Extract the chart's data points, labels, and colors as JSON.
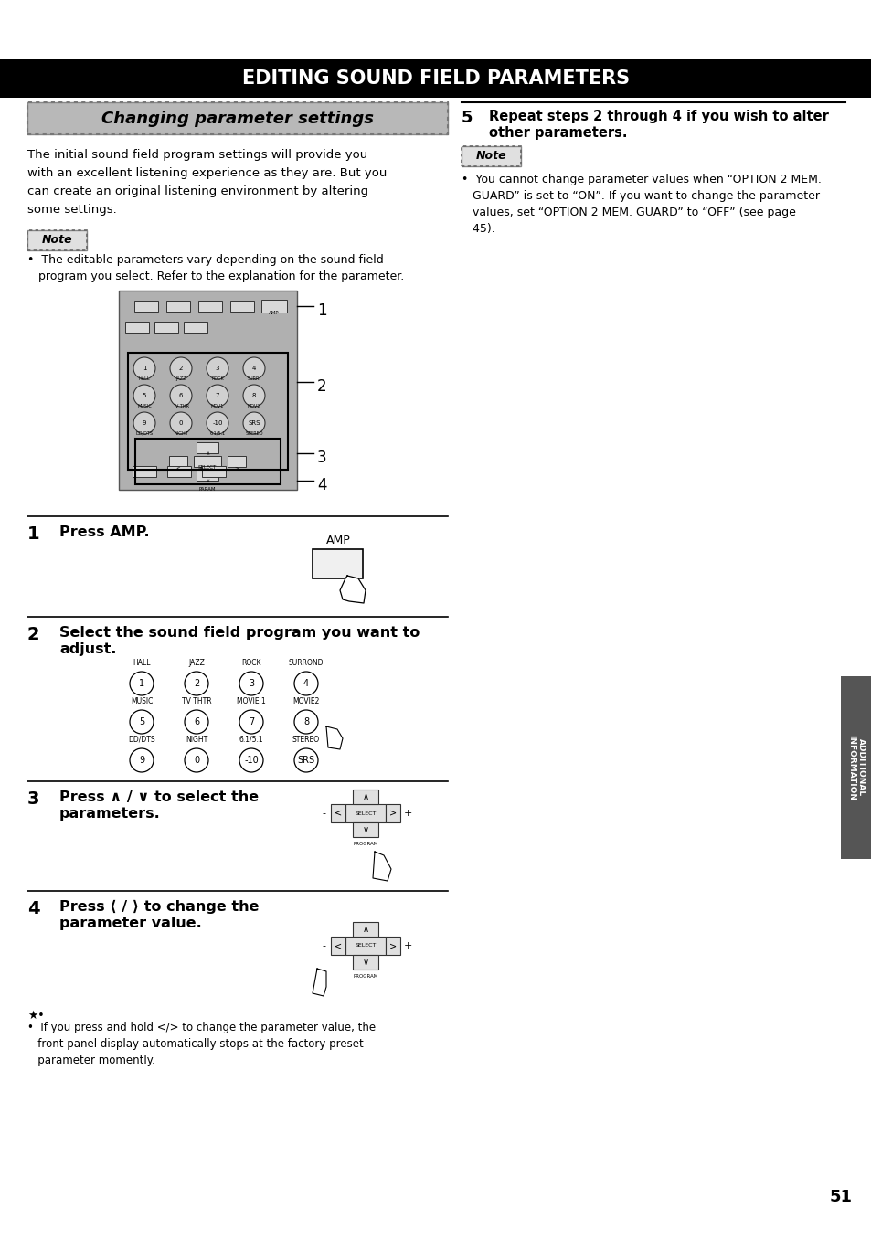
{
  "bg_color": "#ffffff",
  "title_text": "EDITING SOUND FIELD PARAMETERS",
  "title_bg": "#000000",
  "title_color": "#ffffff",
  "section_header_text": "Changing parameter settings",
  "left_intro_lines": [
    "The initial sound field program settings will provide you",
    "with an excellent listening experience as they are. But you",
    "can create an original listening environment by altering",
    "some settings."
  ],
  "left_note_lines": [
    "•  The editable parameters vary depending on the sound field",
    "   program you select. Refer to the explanation for the parameter."
  ],
  "step5_text_line1": "Repeat steps 2 through 4 if you wish to alter",
  "step5_text_line2": "other parameters.",
  "right_note_lines": [
    "•  You cannot change parameter values when “OPTION 2 MEM.",
    "   GUARD” is set to “ON”. If you want to change the parameter",
    "   values, set “OPTION 2 MEM. GUARD” to “OFF” (see page",
    "   45)."
  ],
  "step1_text": "Press AMP.",
  "step2_text_line1": "Select the sound field program you want to",
  "step2_text_line2": "adjust.",
  "step3_text_line1": "Press ∧ / ∨ to select the",
  "step3_text_line2": "parameters.",
  "step4_text_line1": "Press ⟨ / ⟩ to change the",
  "step4_text_line2": "parameter value.",
  "tip_lines": [
    "•  If you press and hold </> to change the parameter value, the",
    "   front panel display automatically stops at the factory preset",
    "   parameter momently."
  ],
  "page_number": "51",
  "sidebar_text": "ADDITIONAL\nINFORMATION",
  "sidebar_bg": "#555555",
  "sidebar_color": "#ffffff",
  "btn_row1": [
    [
      "HALL",
      "1"
    ],
    [
      "JAZZ",
      "2"
    ],
    [
      "ROCK",
      "3"
    ],
    [
      "SURROND",
      "4"
    ]
  ],
  "btn_row2": [
    [
      "MUSIC",
      "5"
    ],
    [
      "TV THTR",
      "6"
    ],
    [
      "MOVIE 1",
      "7"
    ],
    [
      "MOVIE2",
      "8"
    ]
  ],
  "btn_row3": [
    [
      "DD/DTS",
      "9"
    ],
    [
      "NIGHT",
      "0"
    ],
    [
      "6.1/5.1",
      "-10"
    ],
    [
      "STEREO",
      "SRS"
    ]
  ]
}
